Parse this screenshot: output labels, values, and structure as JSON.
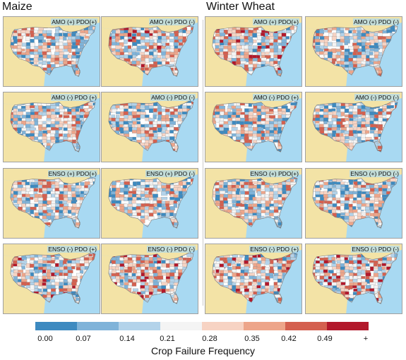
{
  "sections": {
    "maize": {
      "title": "Maize"
    },
    "winter_wheat": {
      "title": "Winter Wheat"
    }
  },
  "panels": [
    {
      "crop": "Maize",
      "label": "AMO (+) PDO(+)"
    },
    {
      "crop": "Maize",
      "label": "AMO (+) PDO (-)"
    },
    {
      "crop": "Winter Wheat",
      "label": "AMO (+) PDO(+)"
    },
    {
      "crop": "Winter Wheat",
      "label": "AMO (+) PDO (-)"
    },
    {
      "crop": "Maize",
      "label": "AMO (-) PDO (+)"
    },
    {
      "crop": "Maize",
      "label": "AMO (-) PDO (-)"
    },
    {
      "crop": "Winter Wheat",
      "label": "AMO (-) PDO (+)"
    },
    {
      "crop": "Winter Wheat",
      "label": "AMO (-) PDO (-)"
    },
    {
      "crop": "Maize",
      "label": "ENSO (+) PDO(+)"
    },
    {
      "crop": "Maize",
      "label": "ENSO (+) PDO (-)"
    },
    {
      "crop": "Winter Wheat",
      "label": "ENSO (+) PDO(+)"
    },
    {
      "crop": "Winter Wheat",
      "label": "ENSO (+) PDO (-)"
    },
    {
      "crop": "Maize",
      "label": "ENSO (-) PDO (+)"
    },
    {
      "crop": "Maize",
      "label": "ENSO (-) PDO (-)"
    },
    {
      "crop": "Winter Wheat",
      "label": "ENSO (-) PDO (+)"
    },
    {
      "crop": "Winter Wheat",
      "label": "ENSO (-) PDO (-)"
    }
  ],
  "legend": {
    "title": "Crop Failure Frequency",
    "ticks": [
      "0.00",
      "0.07",
      "0.14",
      "0.21",
      "0.28",
      "0.35",
      "0.42",
      "0.49",
      "+"
    ],
    "colors": [
      "#3d8ac0",
      "#7fb3d9",
      "#b3d3ea",
      "#f4f4f4",
      "#f7d3c3",
      "#eda58a",
      "#d4604f",
      "#b2182b"
    ]
  },
  "map_colors": {
    "water": "#a8d9f2",
    "neighbor_land": "#f3e3a6",
    "no_data": "#ffffff",
    "county_border": "#8a8a8a"
  }
}
